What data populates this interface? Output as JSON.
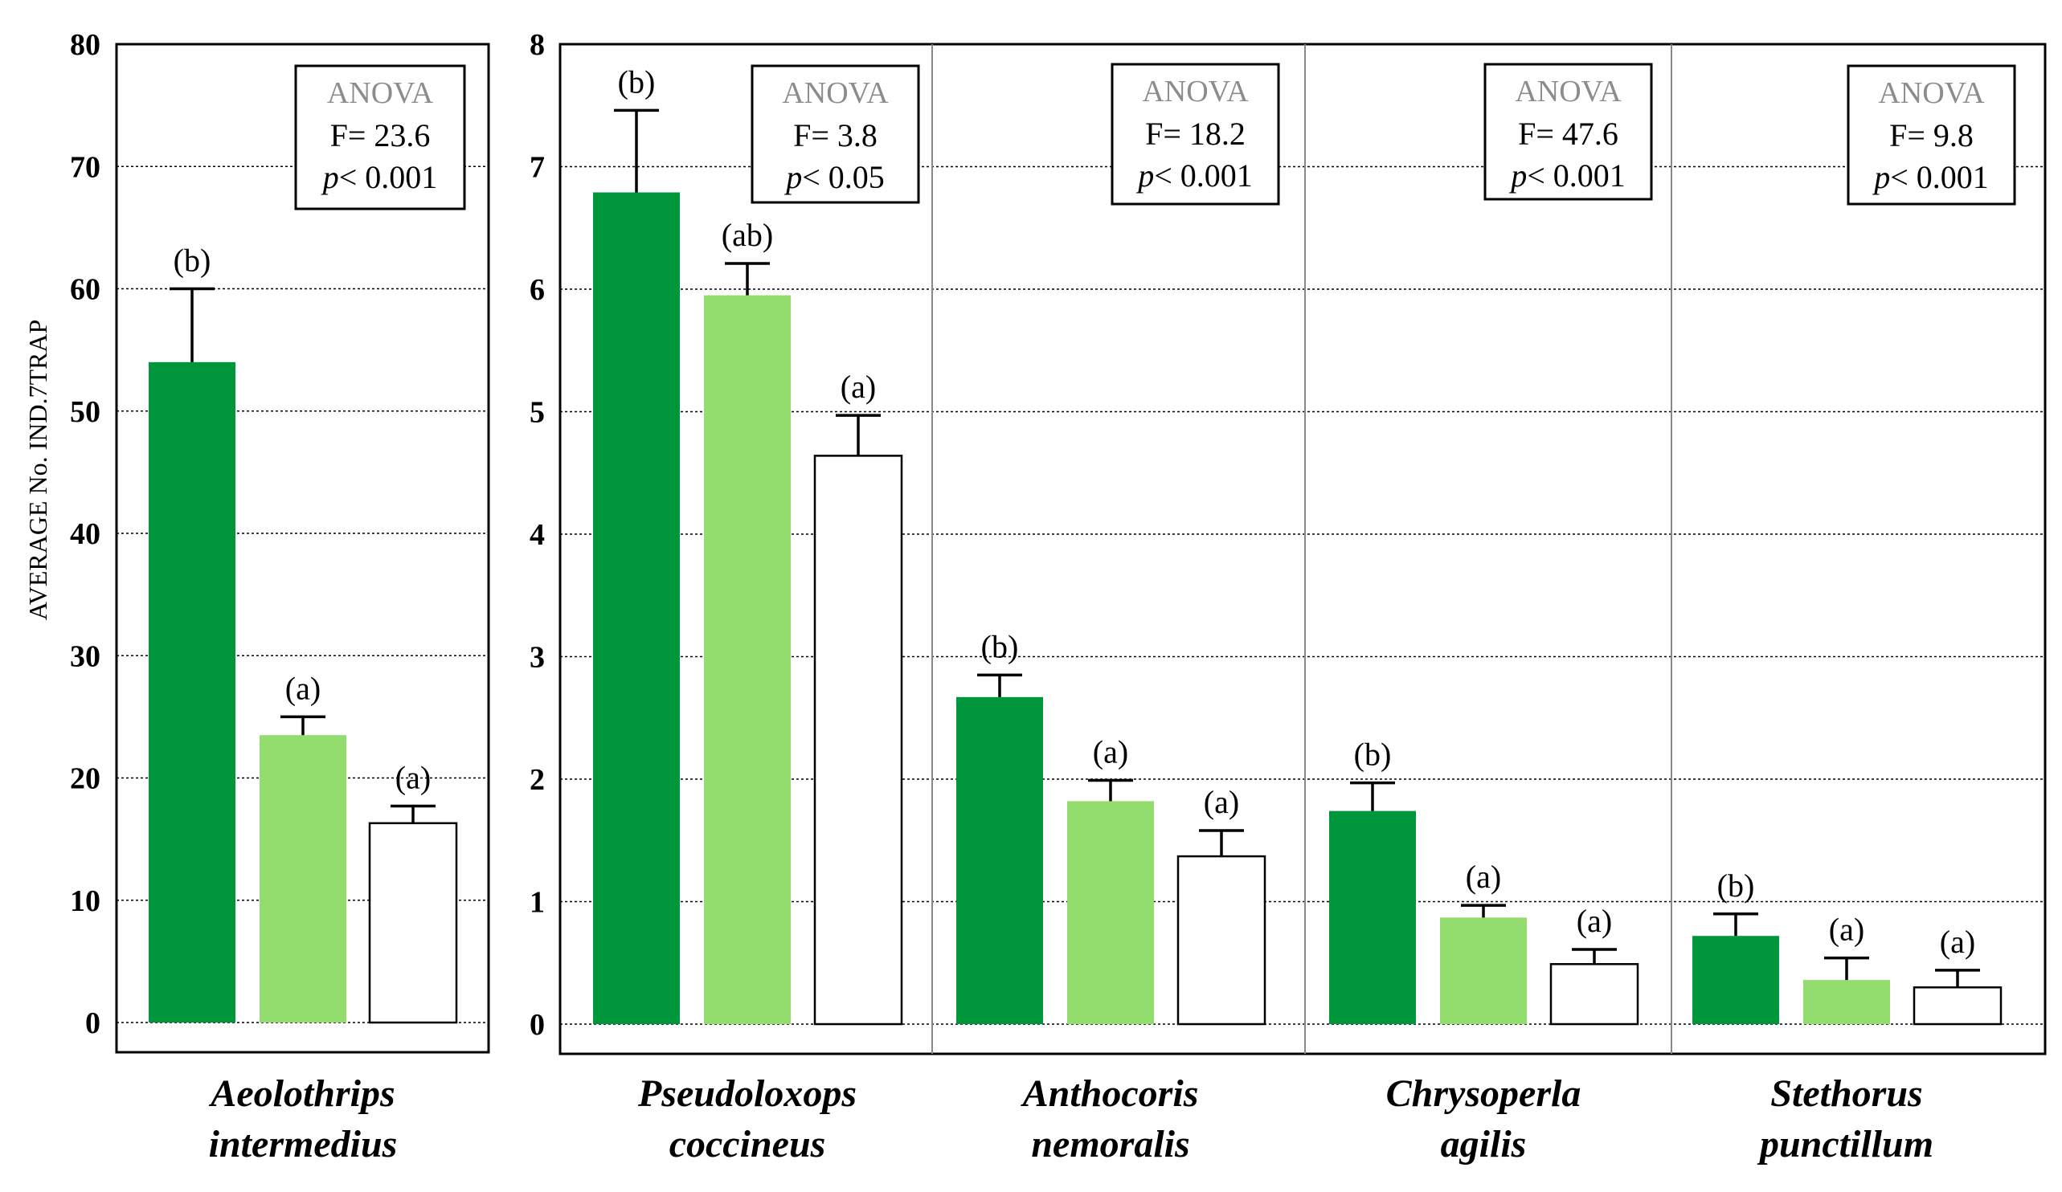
{
  "colors": {
    "dark_green": "#00963c",
    "light_green": "#93dc6e",
    "white": "#ffffff",
    "stroke": "#000000",
    "anova_header": "#8c8c8c"
  },
  "chart_data": [
    {
      "type": "bar",
      "ylabel": "AVERAGE No. IND.7TRAP",
      "ylim": [
        0,
        80
      ],
      "yticks": [
        "0",
        "10",
        "20",
        "30",
        "40",
        "50",
        "60",
        "70",
        "80"
      ],
      "groups": [
        {
          "species_line1": "Aeolothrips",
          "species_line2": "intermedius",
          "anova": {
            "header": "ANOVA",
            "f": "F= 23.6",
            "p_italic": "p",
            "p_rest": "< 0.001"
          },
          "bars": [
            {
              "value": 54,
              "error": 6,
              "label": "(b)",
              "color": "#00963c"
            },
            {
              "value": 23.5,
              "error": 1.5,
              "label": "(a)",
              "color": "#93dc6e"
            },
            {
              "value": 16.3,
              "error": 1.4,
              "label": "(a)",
              "color": "#ffffff"
            }
          ]
        }
      ]
    },
    {
      "type": "bar",
      "ylim": [
        0,
        8
      ],
      "yticks": [
        "0",
        "1",
        "2",
        "3",
        "4",
        "5",
        "6",
        "7",
        "8"
      ],
      "groups": [
        {
          "species_line1": "Pseudoloxops",
          "species_line2": "coccineus",
          "anova": {
            "header": "ANOVA",
            "f": "F= 3.8",
            "p_italic": "p",
            "p_rest": "< 0.05"
          },
          "bars": [
            {
              "value": 6.79,
              "error": 0.67,
              "label": "(b)",
              "color": "#00963c"
            },
            {
              "value": 5.95,
              "error": 0.26,
              "label": "(ab)",
              "color": "#93dc6e"
            },
            {
              "value": 4.64,
              "error": 0.33,
              "label": "(a)",
              "color": "#ffffff"
            }
          ]
        },
        {
          "species_line1": "Anthocoris",
          "species_line2": "nemoralis",
          "anova": {
            "header": "ANOVA",
            "f": "F= 18.2",
            "p_italic": "p",
            "p_rest": "< 0.001"
          },
          "bars": [
            {
              "value": 2.67,
              "error": 0.18,
              "label": "(b)",
              "color": "#00963c"
            },
            {
              "value": 1.82,
              "error": 0.17,
              "label": "(a)",
              "color": "#93dc6e"
            },
            {
              "value": 1.37,
              "error": 0.21,
              "label": "(a)",
              "color": "#ffffff"
            }
          ]
        },
        {
          "species_line1": "Chrysoperla",
          "species_line2": "agilis",
          "anova": {
            "header": "ANOVA",
            "f": "F= 47.6",
            "p_italic": "p",
            "p_rest": "< 0.001"
          },
          "bars": [
            {
              "value": 1.74,
              "error": 0.23,
              "label": "(b)",
              "color": "#00963c"
            },
            {
              "value": 0.87,
              "error": 0.1,
              "label": "(a)",
              "color": "#93dc6e"
            },
            {
              "value": 0.49,
              "error": 0.12,
              "label": "(a)",
              "color": "#ffffff"
            }
          ]
        },
        {
          "species_line1": "Stethorus",
          "species_line2": "punctillum",
          "anova": {
            "header": "ANOVA",
            "f": "F= 9.8",
            "p_italic": "p",
            "p_rest": "< 0.001"
          },
          "bars": [
            {
              "value": 0.72,
              "error": 0.18,
              "label": "(b)",
              "color": "#00963c"
            },
            {
              "value": 0.36,
              "error": 0.18,
              "label": "(a)",
              "color": "#93dc6e"
            },
            {
              "value": 0.3,
              "error": 0.14,
              "label": "(a)",
              "color": "#ffffff"
            }
          ]
        }
      ]
    }
  ]
}
